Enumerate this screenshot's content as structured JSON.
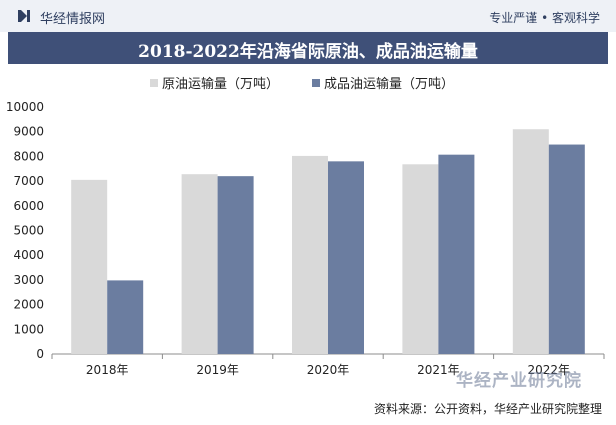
{
  "header": {
    "brand": "华经情报网",
    "slogan": "专业严谨 • 客观科学"
  },
  "watermark": {
    "text": "华经产业研究院"
  },
  "footer": {
    "source": "资料来源：公开资料，华经产业研究院整理"
  },
  "colors": {
    "header_bg": "#eef1f6",
    "title_bg": "#3f5078",
    "crude": "#d9d9d9",
    "product": "#6b7da0"
  },
  "chart_data": {
    "type": "bar",
    "title": "2018-2022年沿海省际原油、成品油运输量",
    "categories": [
      "2018年",
      "2019年",
      "2020年",
      "2021年",
      "2022年"
    ],
    "series": [
      {
        "name": "原油运输量（万吨）",
        "color": "#d9d9d9",
        "values": [
          7050,
          7280,
          8020,
          7680,
          9100
        ]
      },
      {
        "name": "成品油运输量（万吨）",
        "color": "#6b7da0",
        "values": [
          2980,
          7200,
          7800,
          8070,
          8480
        ]
      }
    ],
    "ylim": [
      0,
      10000
    ],
    "yticks": [
      "0",
      "1000",
      "2000",
      "3000",
      "4000",
      "5000",
      "6000",
      "7000",
      "8000",
      "9000",
      "10000"
    ],
    "legend_position": "top-center",
    "grid": false,
    "xlabel": "",
    "ylabel": ""
  }
}
